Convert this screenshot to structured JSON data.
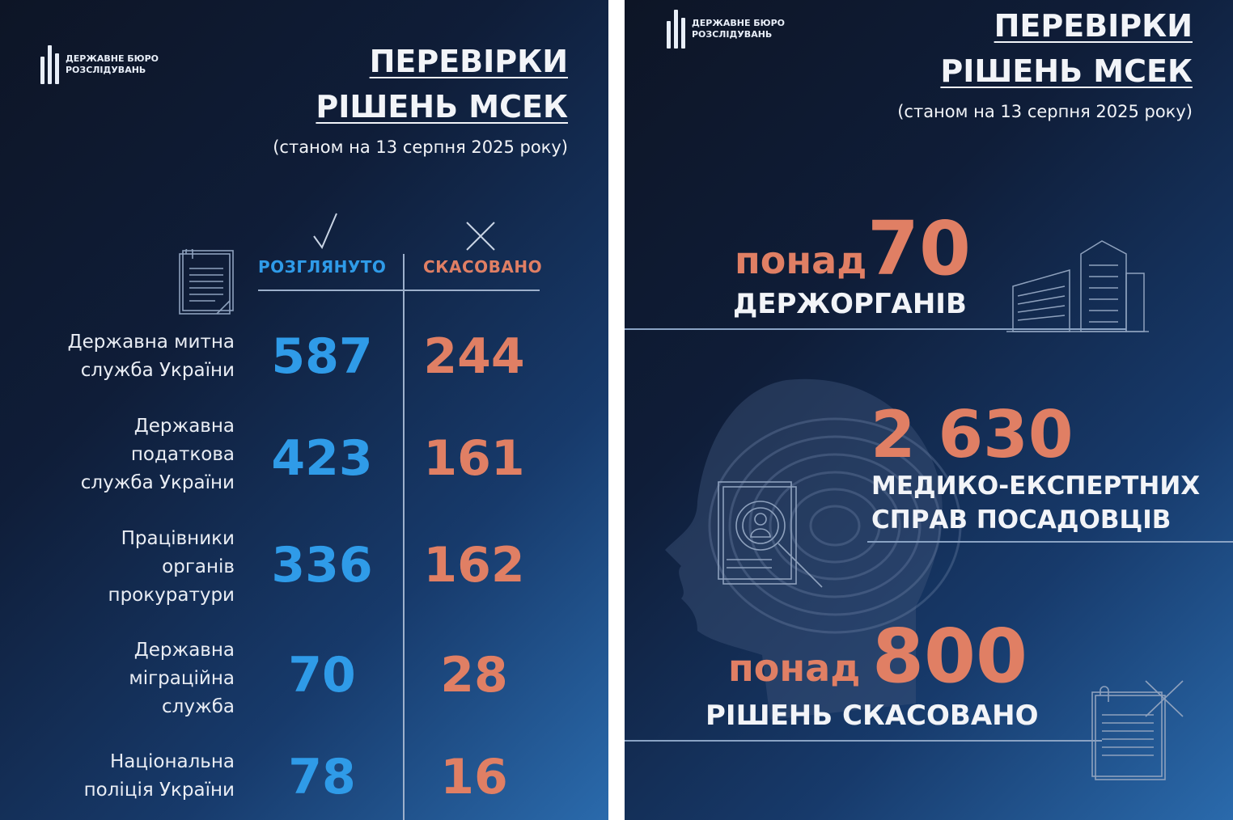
{
  "organization": {
    "line1": "ДЕРЖАВНЕ БЮРО",
    "line2": "РОЗСЛІДУВАНЬ"
  },
  "left_panel": {
    "title_line1": "ПЕРЕВІРКИ",
    "title_line2": "РІШЕНЬ МСЕК",
    "subtitle": "(станом на 13 серпня 2025 року)",
    "col_reviewed": "РОЗГЛЯНУТО",
    "col_cancelled": "СКАСОВАНО",
    "rows": [
      {
        "label_lines": [
          "Державна митна",
          "служба України"
        ],
        "reviewed": "587",
        "cancelled": "244"
      },
      {
        "label_lines": [
          "Державна",
          "податкова",
          "служба України"
        ],
        "reviewed": "423",
        "cancelled": "161"
      },
      {
        "label_lines": [
          "Працівники",
          "органів",
          "прокуратури"
        ],
        "reviewed": "336",
        "cancelled": "162"
      },
      {
        "label_lines": [
          "Державна",
          "міграційна",
          "служба"
        ],
        "reviewed": "70",
        "cancelled": "28"
      },
      {
        "label_lines": [
          "Національна",
          "поліція України"
        ],
        "reviewed": "78",
        "cancelled": "16"
      }
    ]
  },
  "right_panel": {
    "title_line1": "ПЕРЕВІРКИ",
    "title_line2": "РІШЕНЬ МСЕК",
    "subtitle": "(станом на 13 серпня 2025 року)",
    "stat1_prefix": "понад",
    "stat1_number": "70",
    "stat1_label": "ДЕРЖОРГАНІВ",
    "stat2_number": "2 630",
    "stat2_label_line1": "МЕДИКО-ЕКСПЕРТНИХ",
    "stat2_label_line2": "СПРАВ ПОСАДОВЦІВ",
    "stat3_prefix": "понад",
    "stat3_number": "800",
    "stat3_label": "РІШЕНЬ СКАСОВАНО"
  },
  "colors": {
    "accent_blue": "#2f9be8",
    "accent_orange": "#e07f64",
    "text_white": "#f2f4f8"
  },
  "icons": [
    "logo-icon",
    "document-icon",
    "checkmark-icon",
    "cross-icon",
    "building-icon",
    "face-fingerprint-icon",
    "search-document-icon",
    "cancelled-document-icon"
  ]
}
